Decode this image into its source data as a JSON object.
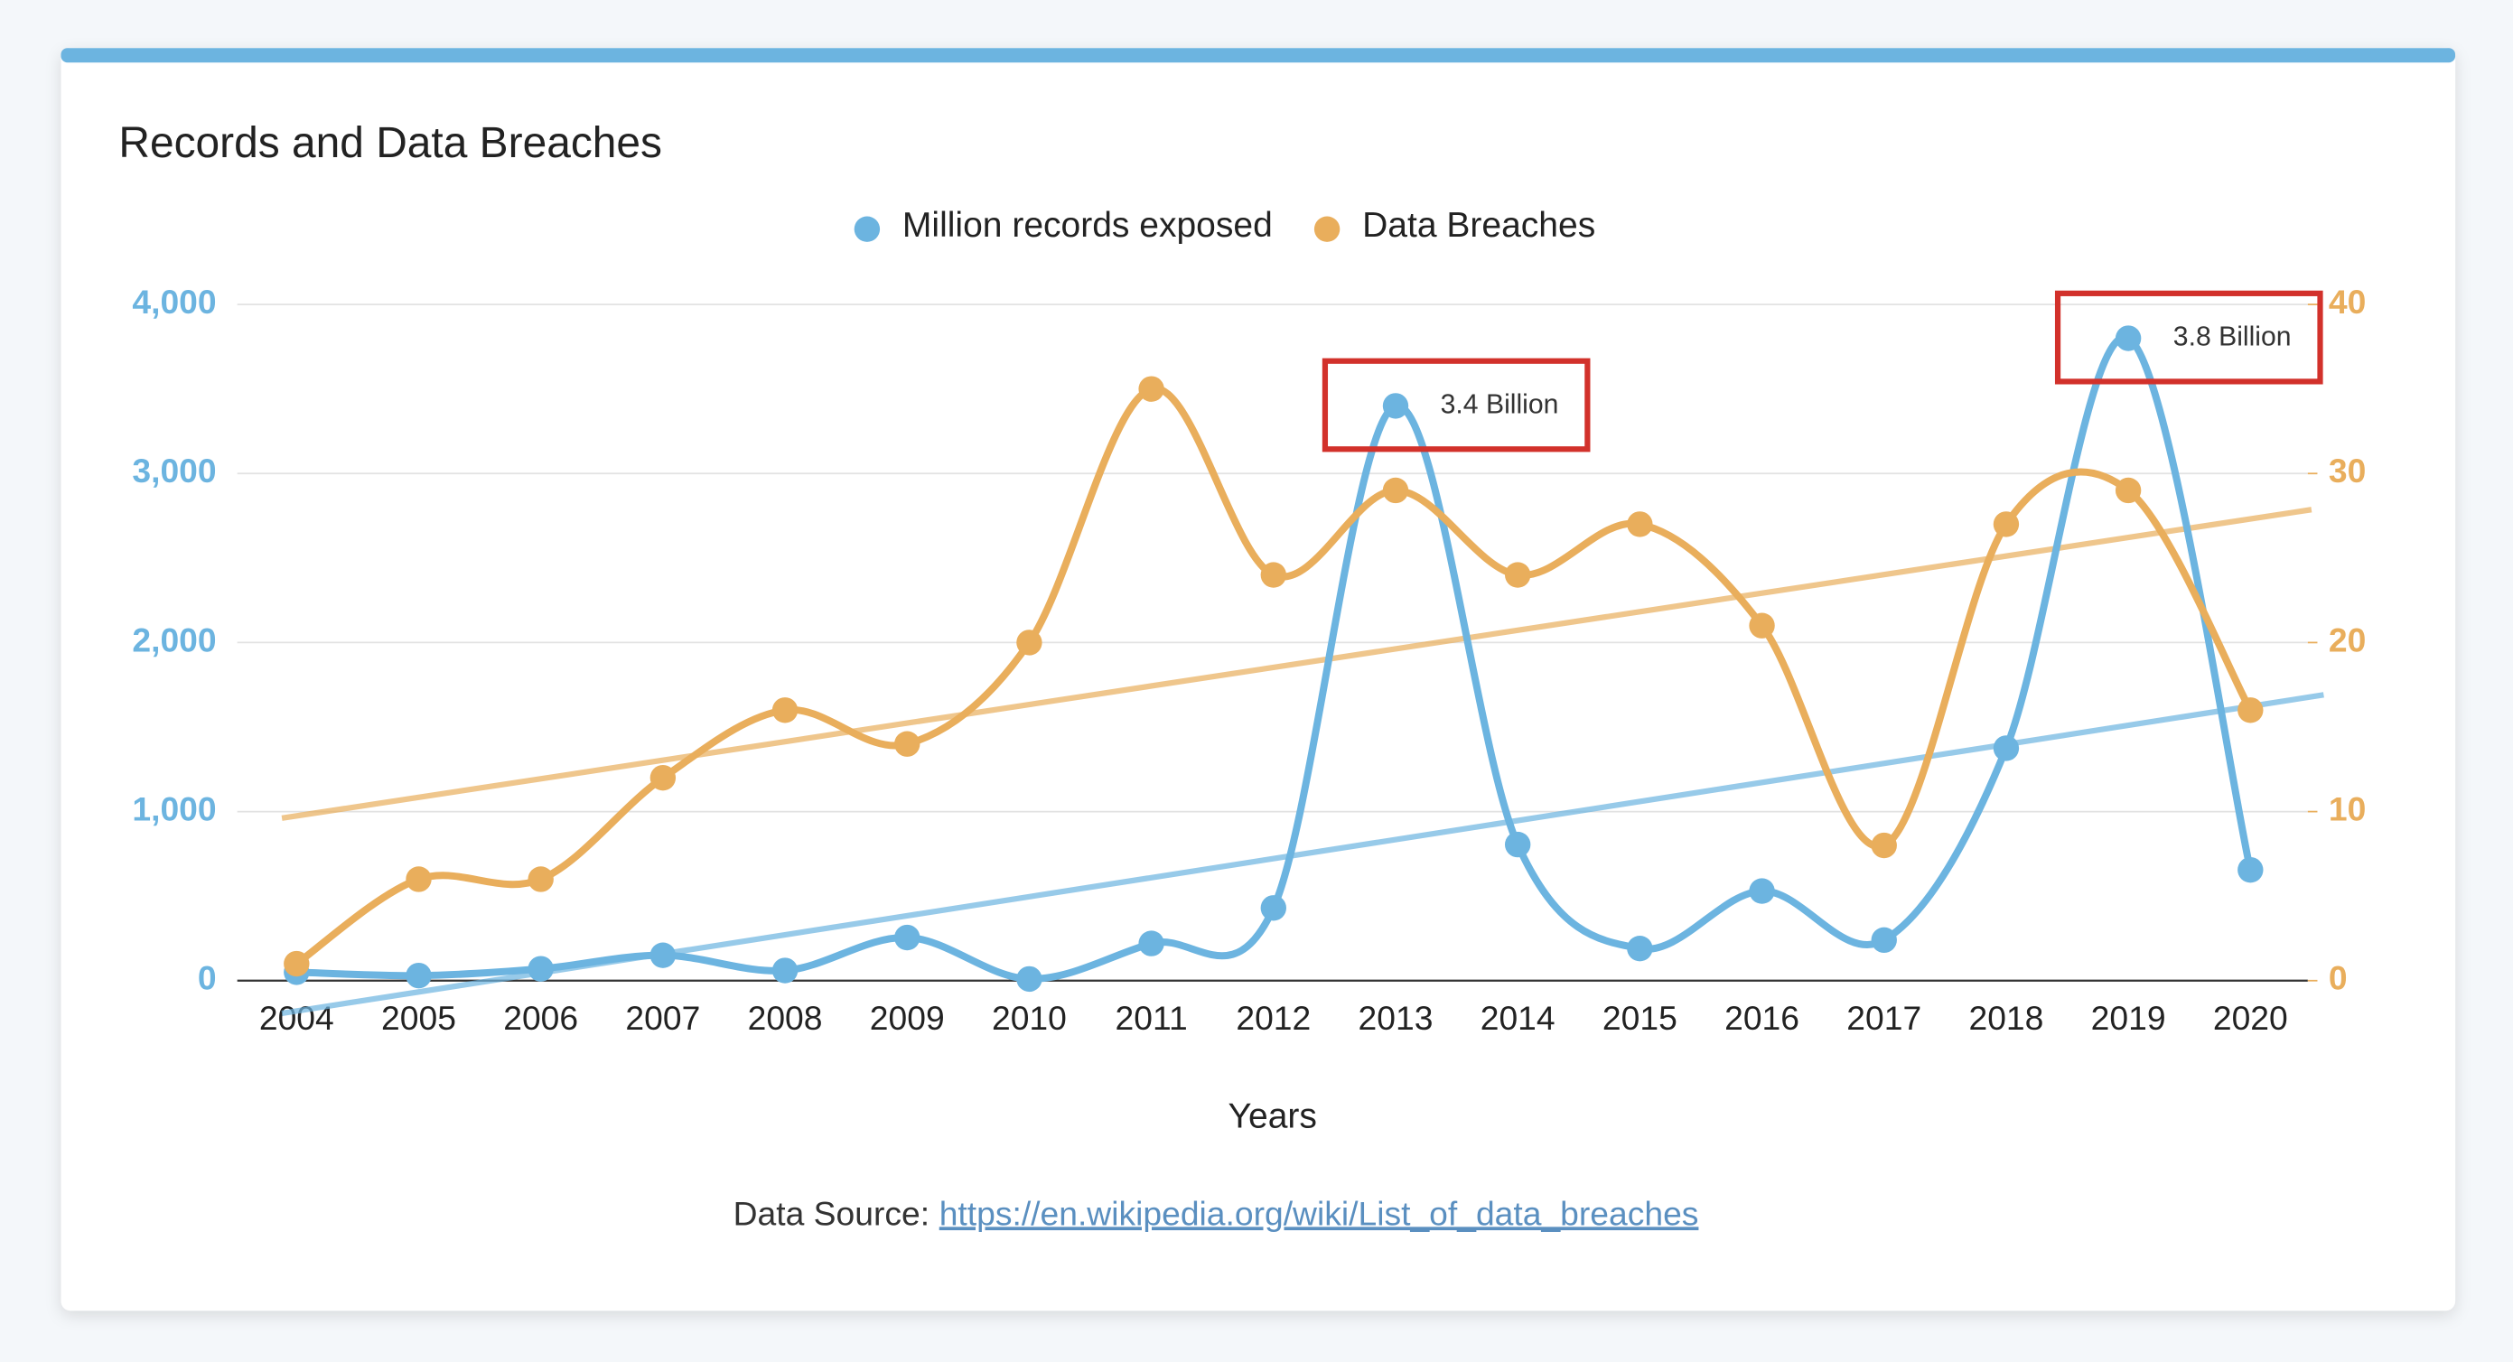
{
  "chart_data": {
    "type": "line",
    "title": "Records and Data Breaches",
    "x_label": "Years",
    "source_label": "Data Source:",
    "source_link": "https://en.wikipedia.org/wiki/List_of_data_breaches",
    "categories": [
      "2004",
      "2005",
      "2006",
      "2007",
      "2008",
      "2009",
      "2010",
      "2011",
      "2012",
      "2013",
      "2014",
      "2015",
      "2016",
      "2017",
      "2018",
      "2019",
      "2020"
    ],
    "series": [
      {
        "name": "Million records exposed",
        "color": "#6cb4e0",
        "trendline": true,
        "values": [
          50,
          30,
          70,
          150,
          60,
          255,
          10,
          220,
          430,
          3400,
          805,
          190,
          530,
          240,
          1375,
          3800,
          655
        ],
        "value_labels": [
          null,
          null,
          null,
          null,
          null,
          null,
          null,
          null,
          null,
          "3.4 Billion",
          null,
          null,
          null,
          null,
          null,
          "3.8 Billion",
          null
        ]
      },
      {
        "name": "Data Breaches",
        "color": "#e9ae5c",
        "axis": "y2",
        "trendline": true,
        "values": [
          1,
          6,
          6,
          12,
          16,
          14,
          20,
          35,
          24,
          29,
          24,
          27,
          21,
          8,
          27,
          29,
          16
        ]
      }
    ],
    "ylim": [
      0,
      4000
    ],
    "yticks": [
      0,
      {
        "value": 1000,
        "label": "1,000"
      },
      {
        "value": 2000,
        "label": "2,000"
      },
      {
        "value": 3000,
        "label": "3,000"
      },
      {
        "value": 4000,
        "label": "4,000"
      }
    ],
    "y2lim": [
      0,
      40
    ],
    "y2ticks": [
      0,
      10,
      20,
      30,
      40
    ],
    "grid": true,
    "legend": "top"
  }
}
